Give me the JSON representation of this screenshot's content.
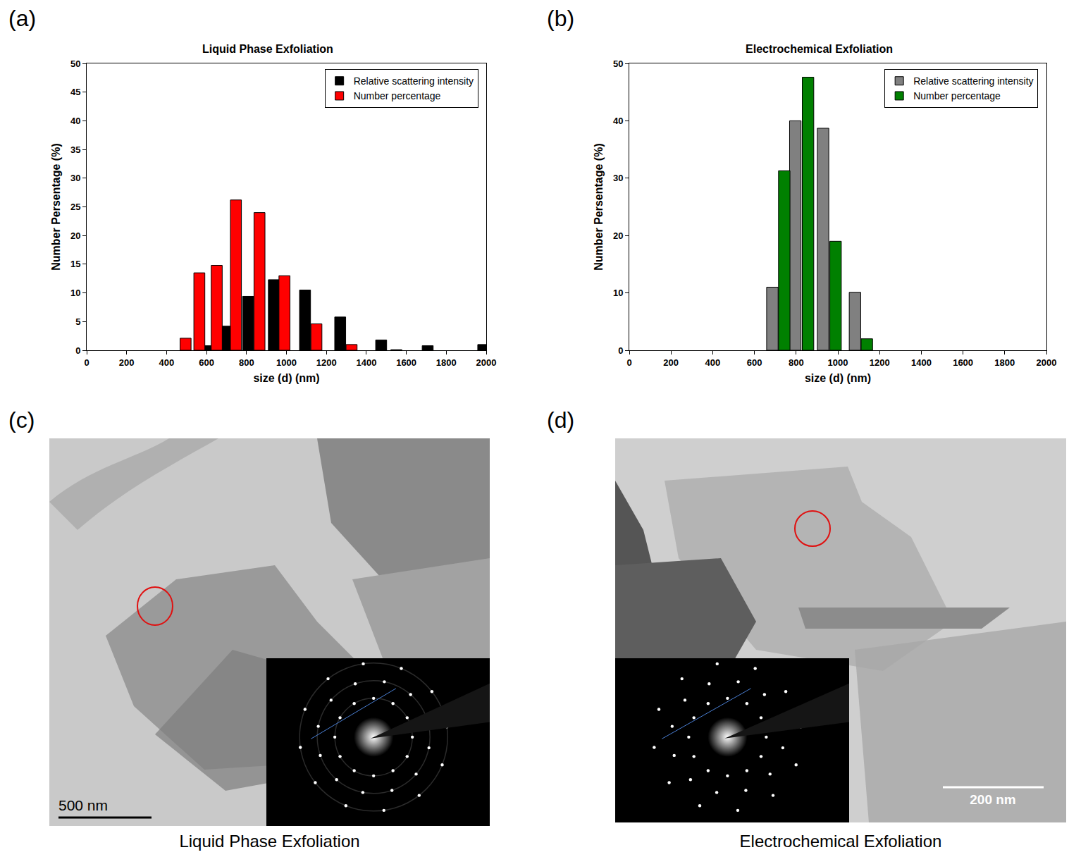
{
  "chart_data": [
    {
      "panel": "(a)",
      "type": "bar",
      "title": "Liquid Phase Exfoliation",
      "x_label": "size (d) (nm)",
      "y_label": "Number Persentage (%)",
      "xlim": [
        0,
        2000
      ],
      "xticks": [
        0,
        200,
        400,
        600,
        800,
        1000,
        1200,
        1400,
        1600,
        1800,
        2000
      ],
      "ylim": [
        0,
        50
      ],
      "yticks": [
        0,
        5,
        10,
        15,
        20,
        25,
        30,
        35,
        40,
        45,
        50
      ],
      "grid": false,
      "legend": "upper right",
      "series": [
        {
          "name": "Relative scattering intensity",
          "color": "#000000",
          "x": [
            613,
            697,
            808,
            937,
            1093,
            1269,
            1474,
            1550,
            1707,
            1985
          ],
          "values": [
            0.8,
            4.2,
            9.4,
            12.3,
            10.5,
            5.8,
            1.8,
            0.1,
            0.8,
            1.0
          ]
        },
        {
          "name": "Number percentage",
          "color": "#ff0000",
          "x": [
            495,
            564,
            651,
            747,
            865,
            990,
            1150,
            1326
          ],
          "values": [
            2.1,
            13.5,
            14.8,
            26.2,
            24.0,
            13.0,
            4.6,
            1.0
          ]
        }
      ]
    },
    {
      "panel": "(b)",
      "type": "bar",
      "title": "Electrochemical Exfoliation",
      "x_label": "size (d) (nm)",
      "y_label": "Number Persentage (%)",
      "xlim": [
        0,
        2000
      ],
      "xticks": [
        0,
        200,
        400,
        600,
        800,
        1000,
        1200,
        1400,
        1600,
        1800,
        2000
      ],
      "ylim": [
        0,
        50
      ],
      "yticks": [
        0,
        10,
        20,
        30,
        40,
        50
      ],
      "grid": false,
      "legend": "upper right",
      "series": [
        {
          "name": "Relative scattering intensity",
          "color": "#808080",
          "x": [
            686,
            796,
            929,
            1082
          ],
          "values": [
            11.0,
            40.0,
            38.7,
            10.1
          ]
        },
        {
          "name": "Number percentage",
          "color": "#008000",
          "x": [
            743,
            857,
            989,
            1139
          ],
          "values": [
            31.3,
            47.6,
            19.0,
            2.0
          ]
        }
      ]
    }
  ],
  "images": [
    {
      "panel": "(c)",
      "scale_bar": "500 nm",
      "caption": "Liquid Phase Exfoliation"
    },
    {
      "panel": "(d)",
      "scale_bar": "200 nm",
      "caption": "Electrochemical Exfoliation"
    }
  ]
}
